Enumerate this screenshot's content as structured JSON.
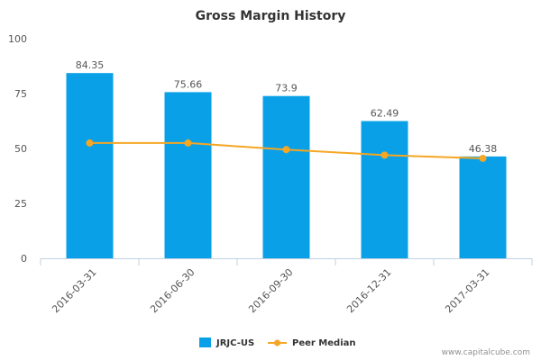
{
  "chart_data": {
    "type": "bar",
    "title": "Gross Margin History",
    "categories": [
      "2016-03-31",
      "2016-06-30",
      "2016-09-30",
      "2016-12-31",
      "2017-03-31"
    ],
    "series": [
      {
        "name": "JRJC-US",
        "type": "bar",
        "color": "#0aa0e8",
        "values": [
          84.35,
          75.66,
          73.9,
          62.49,
          46.38
        ],
        "data_labels": [
          "84.35",
          "75.66",
          "73.9",
          "62.49",
          "46.38"
        ]
      },
      {
        "name": "Peer Median",
        "type": "line",
        "color": "#f5a623",
        "values": [
          52.5,
          52.5,
          49.5,
          47.0,
          45.5
        ]
      }
    ],
    "ylim": [
      0,
      100
    ],
    "yticks": [
      0,
      25,
      50,
      75,
      100
    ],
    "grid": false,
    "legend_position": "bottom-center"
  },
  "watermark": "www.capitalcube.com"
}
